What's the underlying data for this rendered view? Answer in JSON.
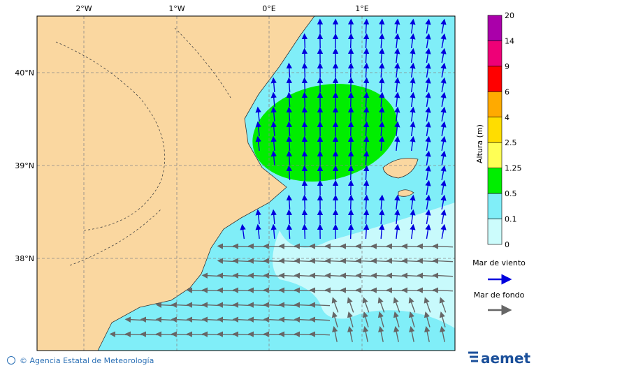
{
  "map": {
    "lon_labels": [
      "2°W",
      "1°W",
      "0°E",
      "1°E"
    ],
    "lat_labels": [
      "40°N",
      "39°N",
      "38°N"
    ],
    "colorbar": {
      "title": "Altura (m)",
      "levels": [
        "20",
        "14",
        "9",
        "6",
        "4",
        "2.5",
        "1.25",
        "0.5",
        "0.1",
        "0"
      ]
    },
    "legend": [
      "Mar de viento",
      "Mar de fondo"
    ]
  },
  "footer": {
    "credit": "© Agencia Estatal de Meteorología",
    "logo": "aemet"
  }
}
